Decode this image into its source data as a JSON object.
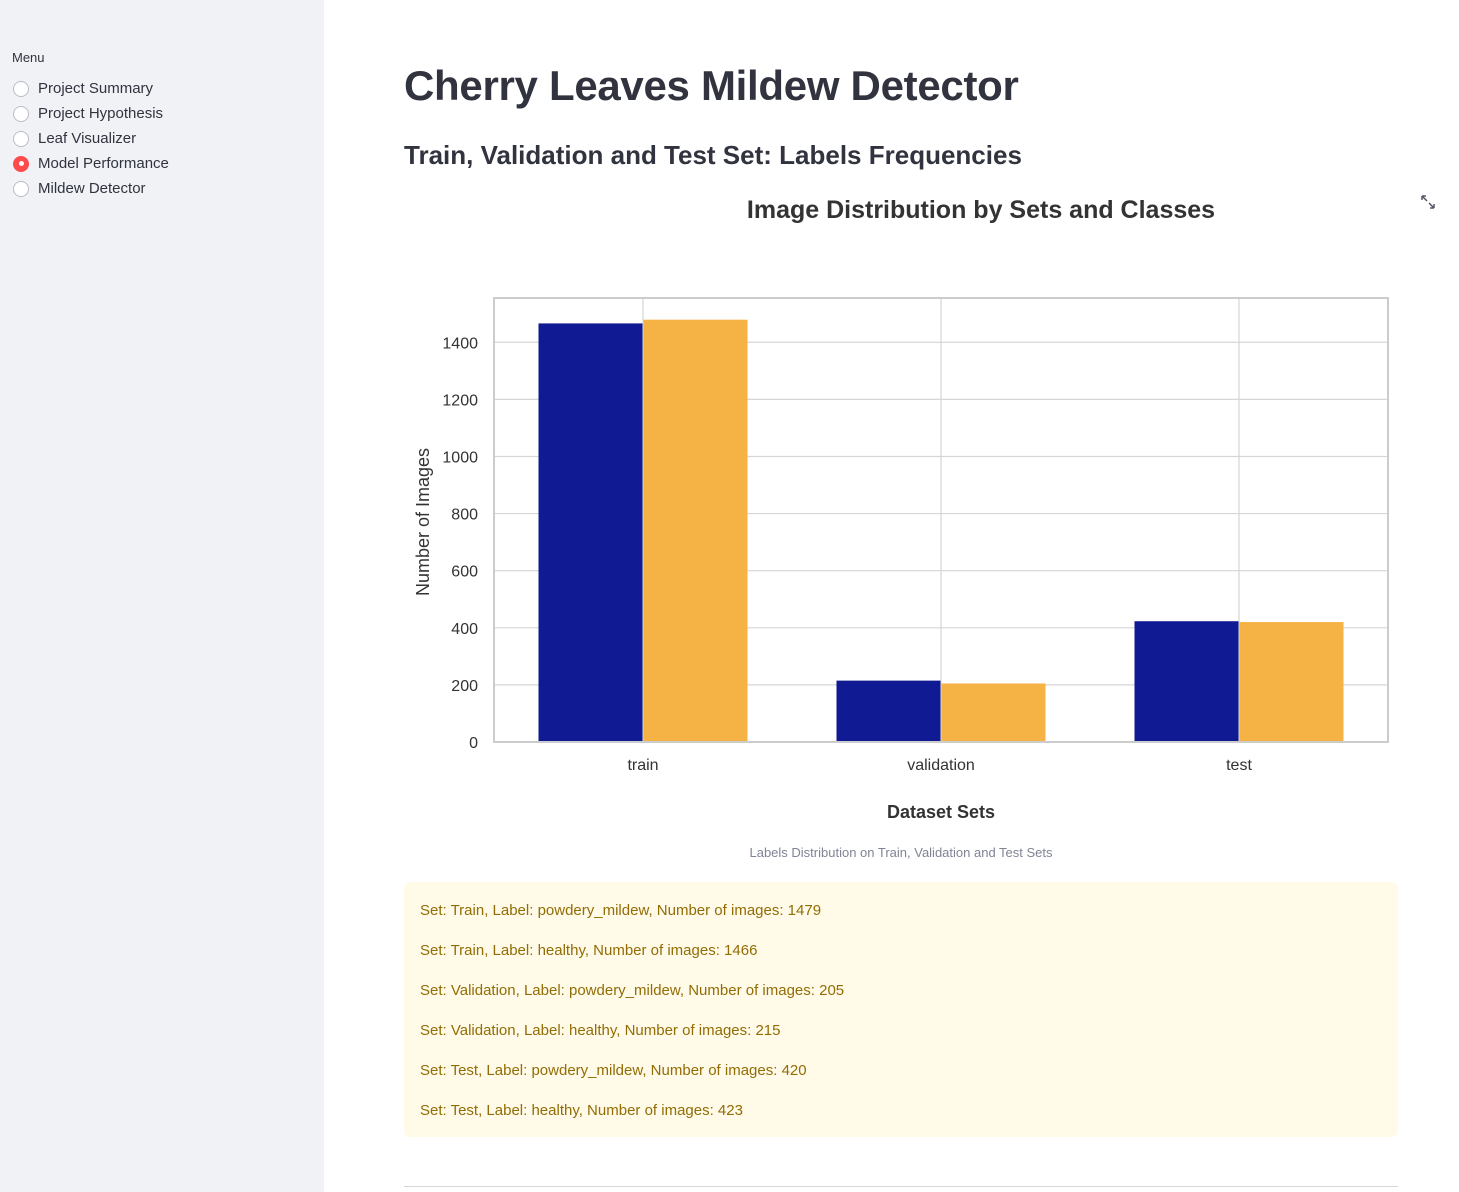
{
  "sidebar": {
    "menu_label": "Menu",
    "items": [
      {
        "label": "Project Summary",
        "selected": false
      },
      {
        "label": "Project Hypothesis",
        "selected": false
      },
      {
        "label": "Leaf Visualizer",
        "selected": false
      },
      {
        "label": "Model Performance",
        "selected": true
      },
      {
        "label": "Mildew Detector",
        "selected": false
      }
    ]
  },
  "main": {
    "title": "Cherry Leaves Mildew Detector",
    "section_title": "Train, Validation and Test Set: Labels Frequencies",
    "caption": "Labels Distribution on Train, Validation and Test Sets",
    "fullscreen_icon": "expand-icon",
    "info_lines": [
      "Set: Train, Label: powdery_mildew, Number of images: 1479",
      "Set: Train, Label: healthy, Number of images: 1466",
      "Set: Validation, Label: powdery_mildew, Number of images: 205",
      "Set: Validation, Label: healthy, Number of images: 215",
      "Set: Test, Label: powdery_mildew, Number of images: 420",
      "Set: Test, Label: healthy, Number of images: 423"
    ]
  },
  "chart_data": {
    "type": "bar",
    "title": "Image Distribution by Sets and Classes",
    "xlabel": "Dataset Sets",
    "ylabel": "Number of Images",
    "categories": [
      "train",
      "validation",
      "test"
    ],
    "series": [
      {
        "values": [
          1466,
          215,
          423
        ],
        "color": "#0f1a93"
      },
      {
        "values": [
          1479,
          205,
          420
        ],
        "color": "#f5b245"
      }
    ],
    "ylim": [
      0,
      1555
    ],
    "yticks": [
      0,
      200,
      400,
      600,
      800,
      1000,
      1200,
      1400
    ],
    "grid": true,
    "legend": "none"
  },
  "colors": {
    "accent": "#ff4b4b",
    "sidebar_bg": "#f0f2f6",
    "alert_bg": "#fffbe8",
    "alert_text": "#926c05"
  }
}
